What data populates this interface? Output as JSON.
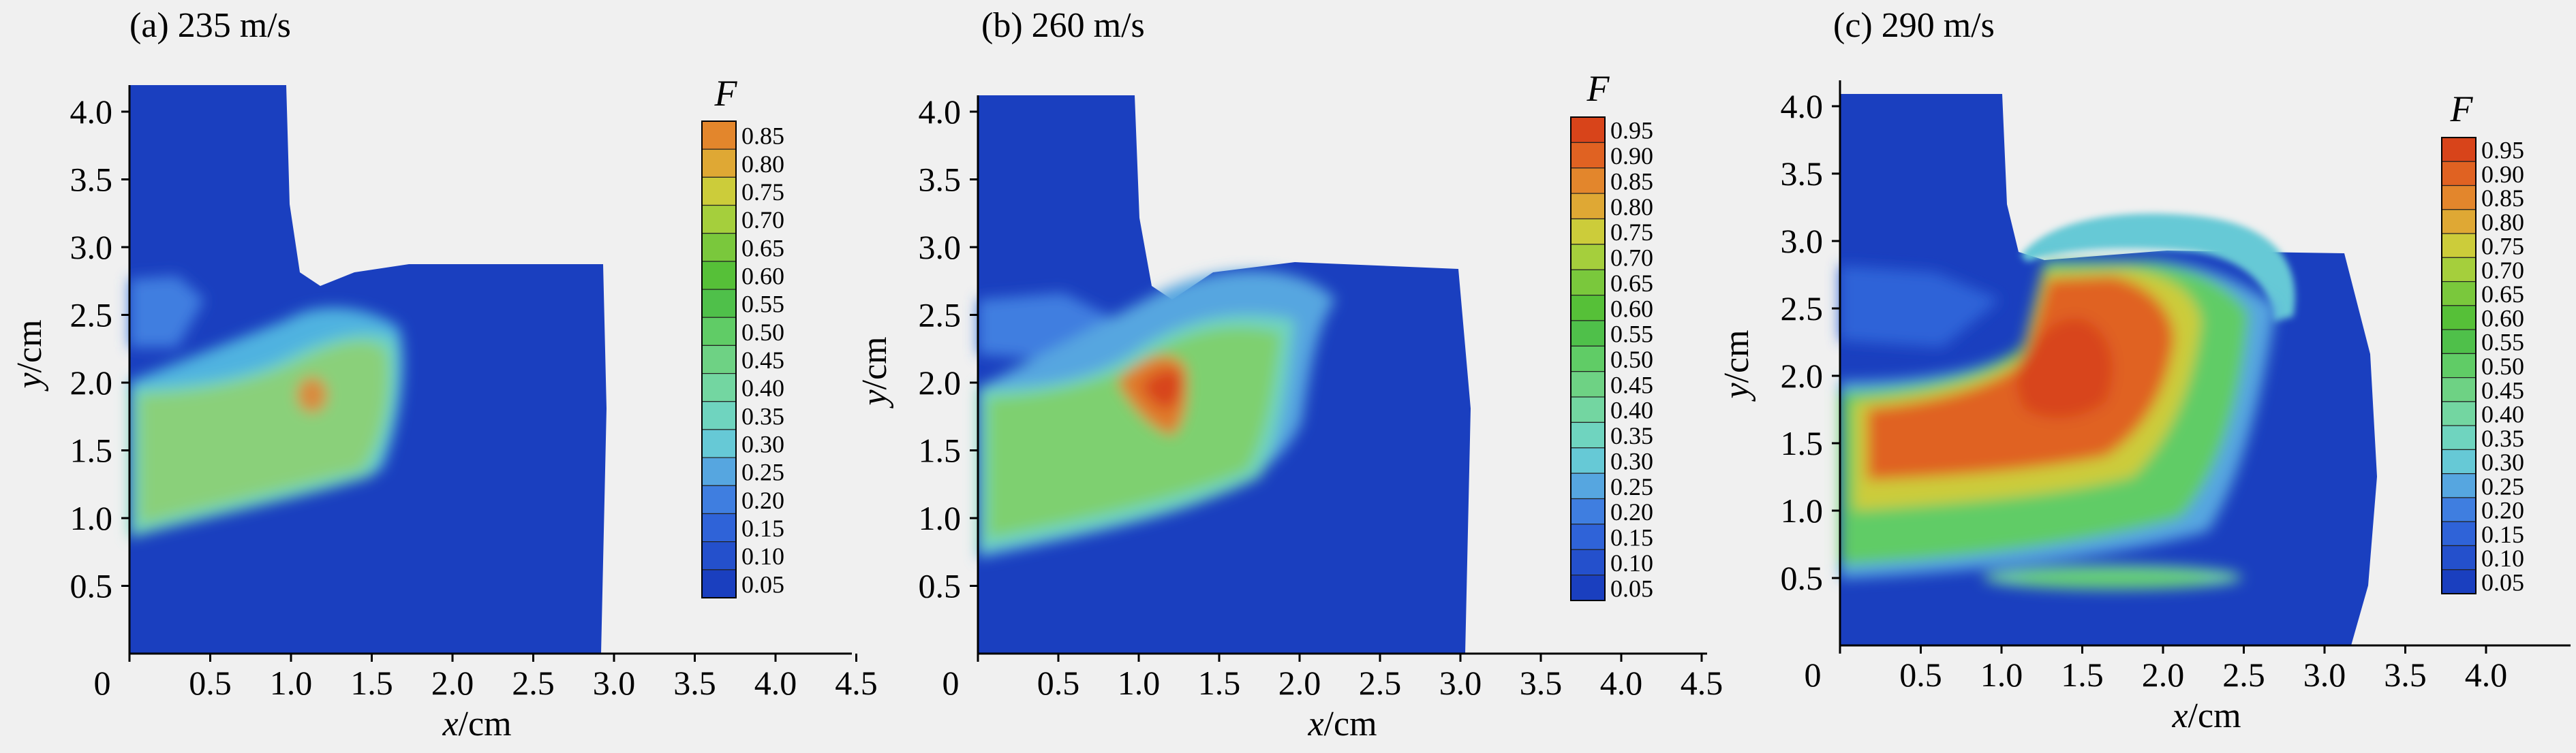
{
  "figure": {
    "palette": [
      "#1a3fbf",
      "#2450cc",
      "#2f63d8",
      "#3f7ee0",
      "#56a6e0",
      "#66c9d6",
      "#6fd4bf",
      "#73d6a1",
      "#6ed284",
      "#60cc66",
      "#4fc04a",
      "#56c038",
      "#7ac83c",
      "#a5cf3c",
      "#cccc3a",
      "#dfa834",
      "#e3862c",
      "#e06222",
      "#d8441a",
      "#c92c14"
    ],
    "background_color": "#f0f0f0"
  },
  "chart_data": [
    {
      "type": "heatmap",
      "title": "(a) 235 m/s",
      "xlabel": "x/cm",
      "ylabel": "y/cm",
      "xlim": [
        0,
        4.5
      ],
      "ylim": [
        0,
        4.2
      ],
      "x_ticks": [
        "0",
        "0.5",
        "1.0",
        "1.5",
        "2.0",
        "2.5",
        "3.0",
        "3.5",
        "4.0",
        "4.5"
      ],
      "y_ticks": [
        "0.5",
        "1.0",
        "1.5",
        "2.0",
        "2.5",
        "3.0",
        "3.5",
        "4.0"
      ],
      "colorbar_title": "F",
      "colorbar_labels": [
        "0.85",
        "0.80",
        "0.75",
        "0.70",
        "0.65",
        "0.60",
        "0.55",
        "0.50",
        "0.45",
        "0.40",
        "0.35",
        "0.30",
        "0.25",
        "0.20",
        "0.15",
        "0.10",
        "0.05"
      ]
    },
    {
      "type": "heatmap",
      "title": "(b) 260 m/s",
      "xlabel": "x/cm",
      "ylabel": "y/cm",
      "xlim": [
        0,
        4.5
      ],
      "ylim": [
        0,
        4.2
      ],
      "x_ticks": [
        "0",
        "0.5",
        "1.0",
        "1.5",
        "2.0",
        "2.5",
        "3.0",
        "3.5",
        "4.0",
        "4.5"
      ],
      "y_ticks": [
        "0.5",
        "1.0",
        "1.5",
        "2.0",
        "2.5",
        "3.0",
        "3.5",
        "4.0"
      ],
      "colorbar_title": "F",
      "colorbar_labels": [
        "0.95",
        "0.90",
        "0.85",
        "0.80",
        "0.75",
        "0.70",
        "0.65",
        "0.60",
        "0.55",
        "0.50",
        "0.45",
        "0.40",
        "0.35",
        "0.30",
        "0.25",
        "0.20",
        "0.15",
        "0.10",
        "0.05"
      ]
    },
    {
      "type": "heatmap",
      "title": "(c) 290 m/s",
      "xlabel": "x/cm",
      "ylabel": "y/cm",
      "xlim": [
        0,
        4.4
      ],
      "ylim": [
        0,
        4.2
      ],
      "x_ticks": [
        "0",
        "0.5",
        "1.0",
        "1.5",
        "2.0",
        "2.5",
        "3.0",
        "3.5",
        "4.0"
      ],
      "y_ticks": [
        "0.5",
        "1.0",
        "1.5",
        "2.0",
        "2.5",
        "3.0",
        "3.5",
        "4.0"
      ],
      "colorbar_title": "F",
      "colorbar_labels": [
        "0.95",
        "0.90",
        "0.85",
        "0.80",
        "0.75",
        "0.70",
        "0.65",
        "0.60",
        "0.55",
        "0.50",
        "0.45",
        "0.40",
        "0.35",
        "0.30",
        "0.25",
        "0.20",
        "0.15",
        "0.10",
        "0.05"
      ]
    }
  ]
}
